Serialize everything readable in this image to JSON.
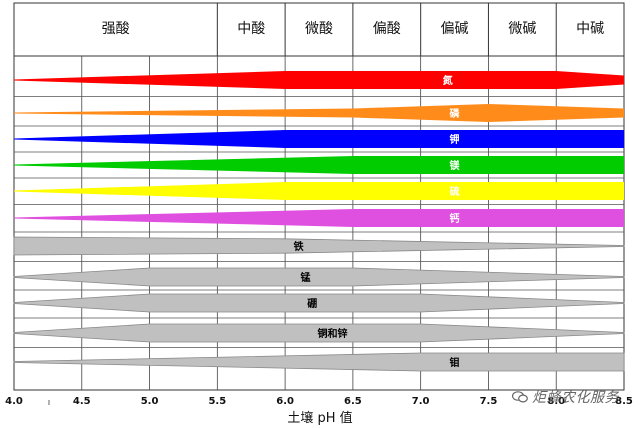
{
  "chart_data": {
    "type": "area",
    "title": "",
    "xlabel": "土壤 pH 值",
    "ylabel": "",
    "xlim": [
      4.0,
      8.5
    ],
    "x_ticks": [
      "4.0",
      "4.5",
      "5.0",
      "5.5",
      "6.0",
      "6.5",
      "7.0",
      "7.5",
      "8.0",
      "8.5"
    ],
    "zones": [
      {
        "label": "强酸",
        "from": 4.0,
        "to": 5.5
      },
      {
        "label": "中酸",
        "from": 5.5,
        "to": 6.0
      },
      {
        "label": "微酸",
        "from": 6.0,
        "to": 6.5
      },
      {
        "label": "偏酸",
        "from": 6.5,
        "to": 7.0
      },
      {
        "label": "偏碱",
        "from": 7.0,
        "to": 7.5
      },
      {
        "label": "微碱",
        "from": 7.5,
        "to": 8.0
      },
      {
        "label": "中碱",
        "from": 8.0,
        "to": 8.5
      }
    ],
    "series": [
      {
        "name": "氮",
        "color": "#ff0000",
        "label_x": 7.2,
        "x": [
          4.0,
          6.0,
          8.0,
          8.5
        ],
        "availability": [
          0.0,
          1.0,
          1.0,
          0.5
        ]
      },
      {
        "name": "磷",
        "color": "#ff8c1a",
        "label_x": 7.25,
        "x": [
          4.0,
          6.5,
          7.5,
          8.5
        ],
        "availability": [
          0.0,
          0.5,
          1.0,
          0.5
        ]
      },
      {
        "name": "钾",
        "color": "#0000ff",
        "label_x": 7.25,
        "x": [
          4.0,
          6.0,
          8.5
        ],
        "availability": [
          0.0,
          1.0,
          1.0
        ]
      },
      {
        "name": "镁",
        "color": "#00cc00",
        "label_x": 7.25,
        "x": [
          4.0,
          6.5,
          8.5
        ],
        "availability": [
          0.0,
          1.0,
          1.0
        ]
      },
      {
        "name": "硫",
        "color": "#ffff00",
        "label_x": 7.25,
        "x": [
          4.0,
          6.0,
          8.5
        ],
        "availability": [
          0.0,
          1.0,
          1.0
        ]
      },
      {
        "name": "钙",
        "color": "#e050e0",
        "label_x": 7.25,
        "x": [
          4.0,
          6.5,
          8.5
        ],
        "availability": [
          0.0,
          1.0,
          1.0
        ]
      },
      {
        "name": "铁",
        "color": "#c0c0c0",
        "label_x": 6.1,
        "x": [
          4.0,
          6.0,
          8.5
        ],
        "availability": [
          1.0,
          0.8,
          0.0
        ]
      },
      {
        "name": "锰",
        "color": "#c0c0c0",
        "label_x": 6.15,
        "x": [
          4.0,
          5.0,
          6.5,
          8.5
        ],
        "availability": [
          0.0,
          1.0,
          1.0,
          0.0
        ]
      },
      {
        "name": "硼",
        "color": "#c0c0c0",
        "label_x": 6.2,
        "x": [
          4.0,
          5.0,
          7.0,
          8.5
        ],
        "availability": [
          0.0,
          1.0,
          1.0,
          0.0
        ]
      },
      {
        "name": "铜和锌",
        "color": "#c0c0c0",
        "label_x": 6.35,
        "x": [
          4.0,
          5.0,
          7.0,
          8.5
        ],
        "availability": [
          0.0,
          1.0,
          1.0,
          0.0
        ]
      },
      {
        "name": "钼",
        "color": "#c0c0c0",
        "label_x": 7.25,
        "x": [
          4.0,
          7.0,
          8.5
        ],
        "availability": [
          0.0,
          1.0,
          1.0
        ]
      }
    ],
    "grid": true,
    "legend": "none"
  },
  "watermark": {
    "text": "炬蜂农化服务",
    "icon": "wechat-icon"
  }
}
